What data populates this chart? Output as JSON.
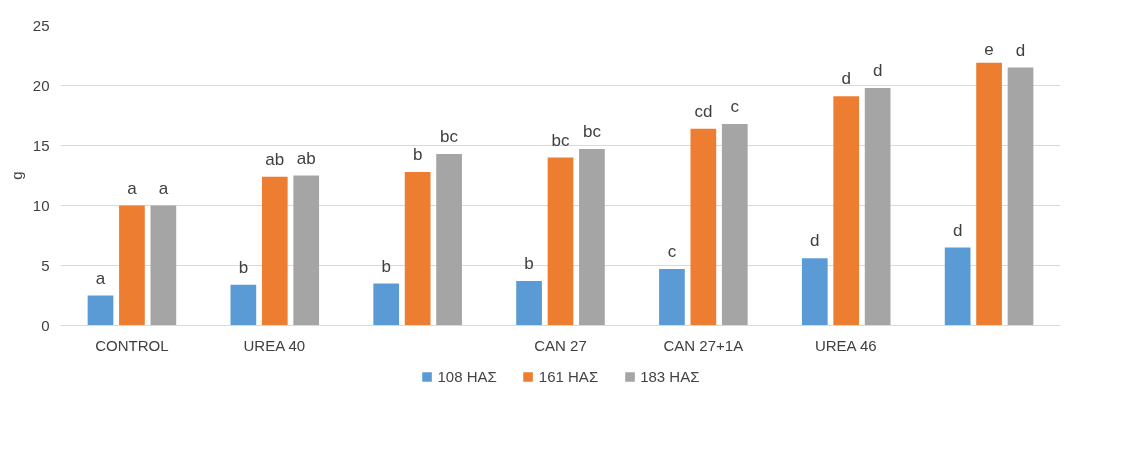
{
  "chart_data": {
    "type": "bar",
    "ylabel": "g",
    "categories": [
      "CONTROL",
      "UREA 40",
      null,
      "CAN 27",
      "CAN 27+1A",
      "UREA 46",
      null
    ],
    "series": [
      {
        "name": "108 ΗΑΣ",
        "color": "#5b9bd5",
        "values": [
          2.5,
          3.4,
          3.5,
          3.7,
          4.7,
          5.6,
          6.5
        ],
        "value_labels": [
          "a",
          "b",
          "b",
          "b",
          "c",
          "d",
          "d"
        ]
      },
      {
        "name": "161 ΗΑΣ",
        "color": "#ed7d31",
        "values": [
          10.0,
          12.4,
          12.8,
          14.0,
          16.4,
          19.1,
          21.9
        ],
        "value_labels": [
          "a",
          "ab",
          "b",
          "bc",
          "cd",
          "d",
          "e"
        ]
      },
      {
        "name": "183 ΗΑΣ",
        "color": "#a5a5a5",
        "values": [
          10.0,
          12.5,
          14.3,
          14.7,
          16.8,
          19.8,
          21.5
        ],
        "value_labels": [
          "a",
          "ab",
          "bc",
          "bc",
          "c",
          "d",
          "d"
        ]
      }
    ],
    "ylim": [
      0,
      25
    ],
    "yticks": [
      0,
      5,
      10,
      15,
      20,
      25
    ],
    "grid": "y",
    "legend": "bottom"
  }
}
